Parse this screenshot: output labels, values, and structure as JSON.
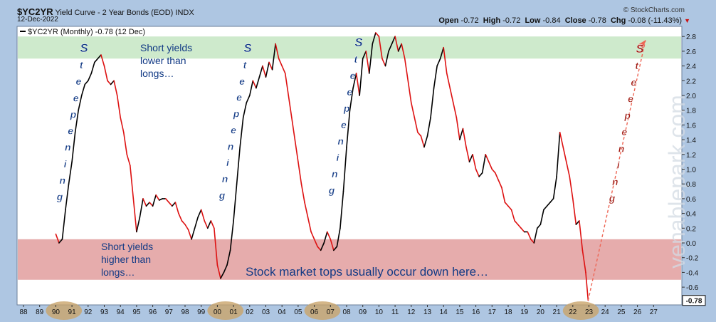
{
  "header": {
    "symbol": "$YC2YR",
    "description": "Yield Curve - 2 Year Bonds (EOD)",
    "exchange": "INDX",
    "date": "12-Dec-2022",
    "source": "© StockCharts.com",
    "open_label": "Open",
    "open": "-0.72",
    "high_label": "High",
    "high": "-0.72",
    "low_label": "Low",
    "low": "-0.84",
    "close_label": "Close",
    "close": "-0.78",
    "chg_label": "Chg",
    "chg": "-0.08 (-11.43%)"
  },
  "legend": {
    "text": "$YC2YR (Monthly) -0.78 (12 Dec)"
  },
  "last_value_tag": "-0.78",
  "watermark": "venablepark.com",
  "annotations": {
    "short_lower": [
      "Short yields",
      "lower than",
      "longs…"
    ],
    "short_higher": [
      "Short yields",
      "higher than",
      "longs…"
    ],
    "tops": "Stock market tops usually occur down here…",
    "steepening": "Steepening"
  },
  "colors": {
    "background": "#ffffff",
    "frame": "#aec6e2",
    "green_band": "#c9e8c7",
    "red_band": "#e09797",
    "steepening_line": "#000000",
    "flattening_line": "#dd1111",
    "projection": "#ee6655",
    "annotation_blue": "#123a85",
    "annotation_red": "#a01810",
    "highlight": "#c9a46a"
  },
  "chart_data": {
    "type": "line",
    "title": "Yield Curve - 2 Year Bonds (EOD)",
    "x_unit": "year",
    "ylim": [
      -0.8,
      2.9
    ],
    "y_ticks": [
      "2.8",
      "2.6",
      "2.4",
      "2.2",
      "2.0",
      "1.8",
      "1.6",
      "1.4",
      "1.2",
      "1.0",
      "0.8",
      "0.6",
      "0.4",
      "0.2",
      "0.0",
      "-0.2",
      "-0.4",
      "-0.6"
    ],
    "x_ticks": [
      "88",
      "89",
      "90",
      "91",
      "92",
      "93",
      "94",
      "95",
      "96",
      "97",
      "98",
      "99",
      "00",
      "01",
      "02",
      "03",
      "04",
      "05",
      "06",
      "07",
      "08",
      "09",
      "10",
      "11",
      "12",
      "13",
      "14",
      "15",
      "16",
      "17",
      "18",
      "19",
      "20",
      "21",
      "22",
      "23",
      "24",
      "25",
      "26",
      "27"
    ],
    "highlighted_periods": [
      [
        "1990",
        "1991"
      ],
      [
        "2000",
        "2001"
      ],
      [
        "2006",
        "2007"
      ],
      [
        "2022",
        "2023"
      ]
    ],
    "bands": [
      {
        "name": "Short yields lower than longs",
        "ymin": 2.5,
        "ymax": 2.8
      },
      {
        "name": "Short yields higher than longs",
        "ymin": -0.5,
        "ymax": 0.05
      }
    ],
    "series": [
      {
        "values": [
          [
            1990.0,
            0.12
          ],
          [
            1990.2,
            0.0
          ],
          [
            1990.4,
            0.05
          ],
          [
            1990.6,
            0.45
          ],
          [
            1990.8,
            0.8
          ],
          [
            1991.0,
            1.1
          ],
          [
            1991.2,
            1.5
          ],
          [
            1991.4,
            1.8
          ],
          [
            1991.6,
            2.0
          ],
          [
            1991.8,
            2.15
          ],
          [
            1992.0,
            2.2
          ],
          [
            1992.2,
            2.3
          ],
          [
            1992.4,
            2.45
          ],
          [
            1992.6,
            2.5
          ],
          [
            1992.8,
            2.55
          ],
          [
            1993.0,
            2.4
          ],
          [
            1993.2,
            2.2
          ],
          [
            1993.4,
            2.15
          ],
          [
            1993.6,
            2.2
          ],
          [
            1993.8,
            2.0
          ],
          [
            1994.0,
            1.7
          ],
          [
            1994.2,
            1.5
          ],
          [
            1994.4,
            1.2
          ],
          [
            1994.6,
            1.05
          ],
          [
            1994.8,
            0.6
          ],
          [
            1995.0,
            0.15
          ],
          [
            1995.2,
            0.35
          ],
          [
            1995.4,
            0.6
          ],
          [
            1995.6,
            0.5
          ],
          [
            1995.8,
            0.55
          ],
          [
            1996.0,
            0.5
          ],
          [
            1996.2,
            0.65
          ],
          [
            1996.4,
            0.58
          ],
          [
            1996.6,
            0.6
          ],
          [
            1996.8,
            0.6
          ],
          [
            1997.0,
            0.55
          ],
          [
            1997.2,
            0.5
          ],
          [
            1997.4,
            0.55
          ],
          [
            1997.6,
            0.4
          ],
          [
            1997.8,
            0.3
          ],
          [
            1998.0,
            0.25
          ],
          [
            1998.2,
            0.18
          ],
          [
            1998.4,
            0.05
          ],
          [
            1998.6,
            0.2
          ],
          [
            1998.8,
            0.35
          ],
          [
            1999.0,
            0.45
          ],
          [
            1999.2,
            0.3
          ],
          [
            1999.4,
            0.2
          ],
          [
            1999.6,
            0.3
          ],
          [
            1999.8,
            0.2
          ],
          [
            2000.0,
            -0.3
          ],
          [
            2000.2,
            -0.48
          ],
          [
            2000.4,
            -0.4
          ],
          [
            2000.6,
            -0.3
          ],
          [
            2000.8,
            -0.1
          ],
          [
            2001.0,
            0.3
          ],
          [
            2001.2,
            0.8
          ],
          [
            2001.4,
            1.3
          ],
          [
            2001.6,
            1.7
          ],
          [
            2001.8,
            1.9
          ],
          [
            2002.0,
            2.0
          ],
          [
            2002.2,
            2.2
          ],
          [
            2002.4,
            2.1
          ],
          [
            2002.6,
            2.25
          ],
          [
            2002.8,
            2.4
          ],
          [
            2003.0,
            2.25
          ],
          [
            2003.2,
            2.45
          ],
          [
            2003.4,
            2.35
          ],
          [
            2003.6,
            2.7
          ],
          [
            2003.8,
            2.5
          ],
          [
            2004.0,
            2.4
          ],
          [
            2004.2,
            2.3
          ],
          [
            2004.4,
            2.0
          ],
          [
            2004.6,
            1.7
          ],
          [
            2004.8,
            1.4
          ],
          [
            2005.0,
            1.1
          ],
          [
            2005.2,
            0.8
          ],
          [
            2005.4,
            0.55
          ],
          [
            2005.6,
            0.35
          ],
          [
            2005.8,
            0.15
          ],
          [
            2006.0,
            0.05
          ],
          [
            2006.2,
            -0.05
          ],
          [
            2006.4,
            -0.1
          ],
          [
            2006.6,
            0.0
          ],
          [
            2006.8,
            0.15
          ],
          [
            2007.0,
            0.05
          ],
          [
            2007.2,
            -0.1
          ],
          [
            2007.4,
            -0.05
          ],
          [
            2007.6,
            0.2
          ],
          [
            2007.8,
            0.7
          ],
          [
            2008.0,
            1.3
          ],
          [
            2008.2,
            1.8
          ],
          [
            2008.4,
            2.1
          ],
          [
            2008.6,
            2.3
          ],
          [
            2008.8,
            2.0
          ],
          [
            2009.0,
            2.5
          ],
          [
            2009.2,
            2.6
          ],
          [
            2009.4,
            2.3
          ],
          [
            2009.6,
            2.7
          ],
          [
            2009.8,
            2.85
          ],
          [
            2010.0,
            2.8
          ],
          [
            2010.2,
            2.5
          ],
          [
            2010.4,
            2.4
          ],
          [
            2010.6,
            2.6
          ],
          [
            2010.8,
            2.7
          ],
          [
            2011.0,
            2.8
          ],
          [
            2011.2,
            2.6
          ],
          [
            2011.4,
            2.7
          ],
          [
            2011.6,
            2.5
          ],
          [
            2011.8,
            2.2
          ],
          [
            2012.0,
            1.9
          ],
          [
            2012.2,
            1.7
          ],
          [
            2012.4,
            1.5
          ],
          [
            2012.6,
            1.45
          ],
          [
            2012.8,
            1.3
          ],
          [
            2013.0,
            1.45
          ],
          [
            2013.2,
            1.7
          ],
          [
            2013.4,
            2.1
          ],
          [
            2013.6,
            2.4
          ],
          [
            2013.8,
            2.5
          ],
          [
            2014.0,
            2.65
          ],
          [
            2014.2,
            2.3
          ],
          [
            2014.4,
            2.1
          ],
          [
            2014.6,
            1.9
          ],
          [
            2014.8,
            1.7
          ],
          [
            2015.0,
            1.4
          ],
          [
            2015.2,
            1.55
          ],
          [
            2015.4,
            1.3
          ],
          [
            2015.6,
            1.1
          ],
          [
            2015.8,
            1.2
          ],
          [
            2016.0,
            1.0
          ],
          [
            2016.2,
            0.9
          ],
          [
            2016.4,
            0.95
          ],
          [
            2016.6,
            1.2
          ],
          [
            2016.8,
            1.1
          ],
          [
            2017.0,
            1.0
          ],
          [
            2017.2,
            0.95
          ],
          [
            2017.4,
            0.85
          ],
          [
            2017.6,
            0.75
          ],
          [
            2017.8,
            0.55
          ],
          [
            2018.0,
            0.5
          ],
          [
            2018.2,
            0.45
          ],
          [
            2018.4,
            0.3
          ],
          [
            2018.6,
            0.25
          ],
          [
            2018.8,
            0.2
          ],
          [
            2019.0,
            0.15
          ],
          [
            2019.2,
            0.15
          ],
          [
            2019.4,
            0.05
          ],
          [
            2019.6,
            0.0
          ],
          [
            2019.8,
            0.2
          ],
          [
            2020.0,
            0.25
          ],
          [
            2020.2,
            0.45
          ],
          [
            2020.4,
            0.5
          ],
          [
            2020.6,
            0.55
          ],
          [
            2020.8,
            0.6
          ],
          [
            2021.0,
            0.9
          ],
          [
            2021.2,
            1.5
          ],
          [
            2021.4,
            1.3
          ],
          [
            2021.6,
            1.1
          ],
          [
            2021.8,
            0.9
          ],
          [
            2022.0,
            0.6
          ],
          [
            2022.2,
            0.25
          ],
          [
            2022.4,
            0.3
          ],
          [
            2022.6,
            -0.1
          ],
          [
            2022.8,
            -0.4
          ],
          [
            2022.95,
            -0.78
          ]
        ]
      }
    ]
  }
}
